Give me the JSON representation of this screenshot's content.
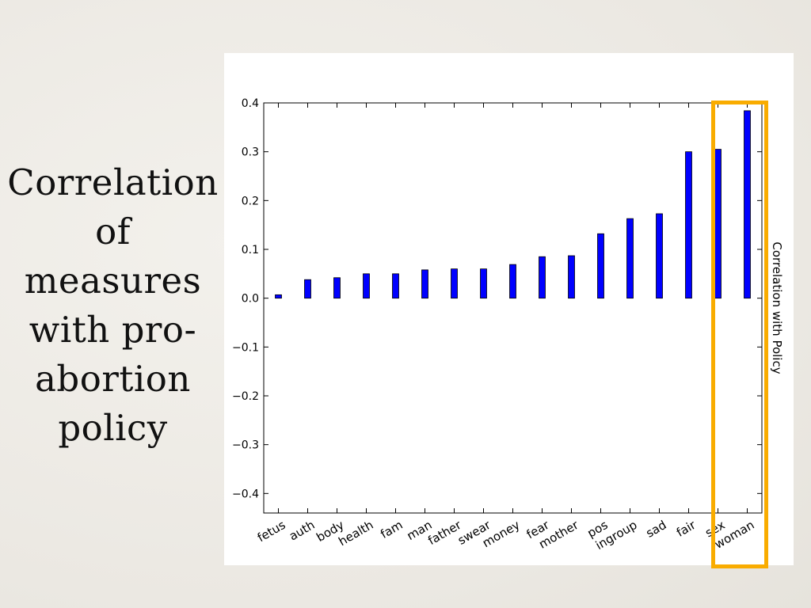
{
  "slide": {
    "title_lines": [
      "Correlation",
      "of",
      "measures",
      "with pro-",
      "abortion",
      "policy"
    ]
  },
  "colors": {
    "bar": "#0000ff",
    "highlight": "#f9ac00",
    "background": "#eeece7",
    "panel": "#ffffff"
  },
  "chart_data": {
    "type": "bar",
    "categories": [
      "fetus",
      "auth",
      "body",
      "health",
      "fam",
      "man",
      "father",
      "swear",
      "money",
      "fear",
      "mother",
      "pos",
      "ingroup",
      "sad",
      "fair",
      "sex",
      "woman"
    ],
    "values": [
      0.007,
      0.038,
      0.042,
      0.05,
      0.05,
      0.058,
      0.06,
      0.06,
      0.069,
      0.085,
      0.087,
      0.132,
      0.163,
      0.173,
      0.3,
      0.305,
      0.384
    ],
    "ylabel": "Correlation with Policy",
    "ylabel_position": "right",
    "ylim": [
      -0.44,
      0.4
    ],
    "yticks": [
      -0.4,
      -0.3,
      -0.2,
      -0.1,
      0.0,
      0.1,
      0.2,
      0.3,
      0.4
    ],
    "ytick_labels": [
      "−0.4",
      "−0.3",
      "−0.2",
      "−0.1",
      "0.0",
      "0.1",
      "0.2",
      "0.3",
      "0.4"
    ],
    "xtick_rotation": "45 degrees",
    "highlighted_category": "woman",
    "grid": false,
    "legend": "none"
  }
}
